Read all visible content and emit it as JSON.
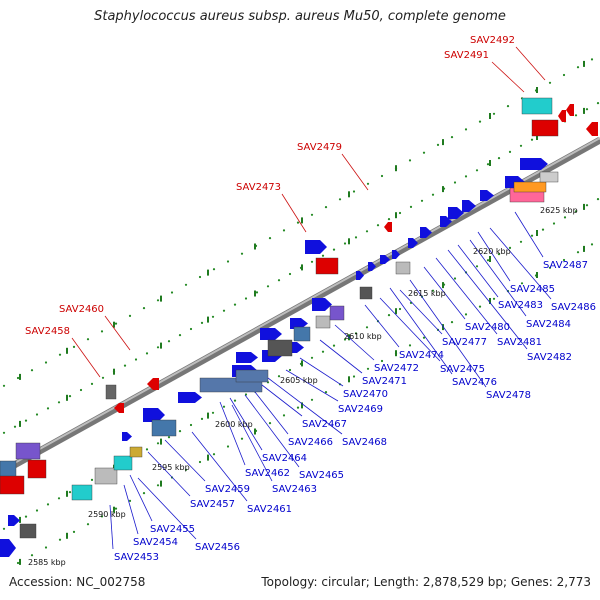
{
  "title": "Staphylococcus aureus subsp. aureus Mu50, complete genome",
  "footer": {
    "accession": "Accession: NC_002758",
    "summary": "Topology: circular; Length: 2,878,529 bp; Genes: 2,773"
  },
  "colors": {
    "forward_cds": "#1010dd",
    "reverse_cds": "#dd0000",
    "backbone": "#8c8c8c",
    "feature_label": "#0000cc",
    "highlight_label": "#cc0000",
    "dots": "#228822"
  },
  "ticks": [
    "2585 kbp",
    "2590 kbp",
    "2595 kbp",
    "2600 kbp",
    "2605 kbp",
    "2610 kbp",
    "2615 kbp",
    "2620 kbp",
    "2625 kbp"
  ],
  "blue_labels": [
    "SAV2453",
    "SAV2454",
    "SAV2455",
    "SAV2456",
    "SAV2457",
    "SAV2459",
    "SAV2461",
    "SAV2462",
    "SAV2463",
    "SAV2464",
    "SAV2465",
    "SAV2466",
    "SAV2467",
    "SAV2468",
    "SAV2469",
    "SAV2470",
    "SAV2471",
    "SAV2472",
    "SAV2474",
    "SAV2475",
    "SAV2476",
    "SAV2477",
    "SAV2478",
    "SAV2480",
    "SAV2481",
    "SAV2482",
    "SAV2483",
    "SAV2484",
    "SAV2485",
    "SAV2486",
    "SAV2487"
  ],
  "red_labels": [
    "SAV2458",
    "SAV2460",
    "SAV2473",
    "SAV2479",
    "SAV2491",
    "SAV2492"
  ]
}
